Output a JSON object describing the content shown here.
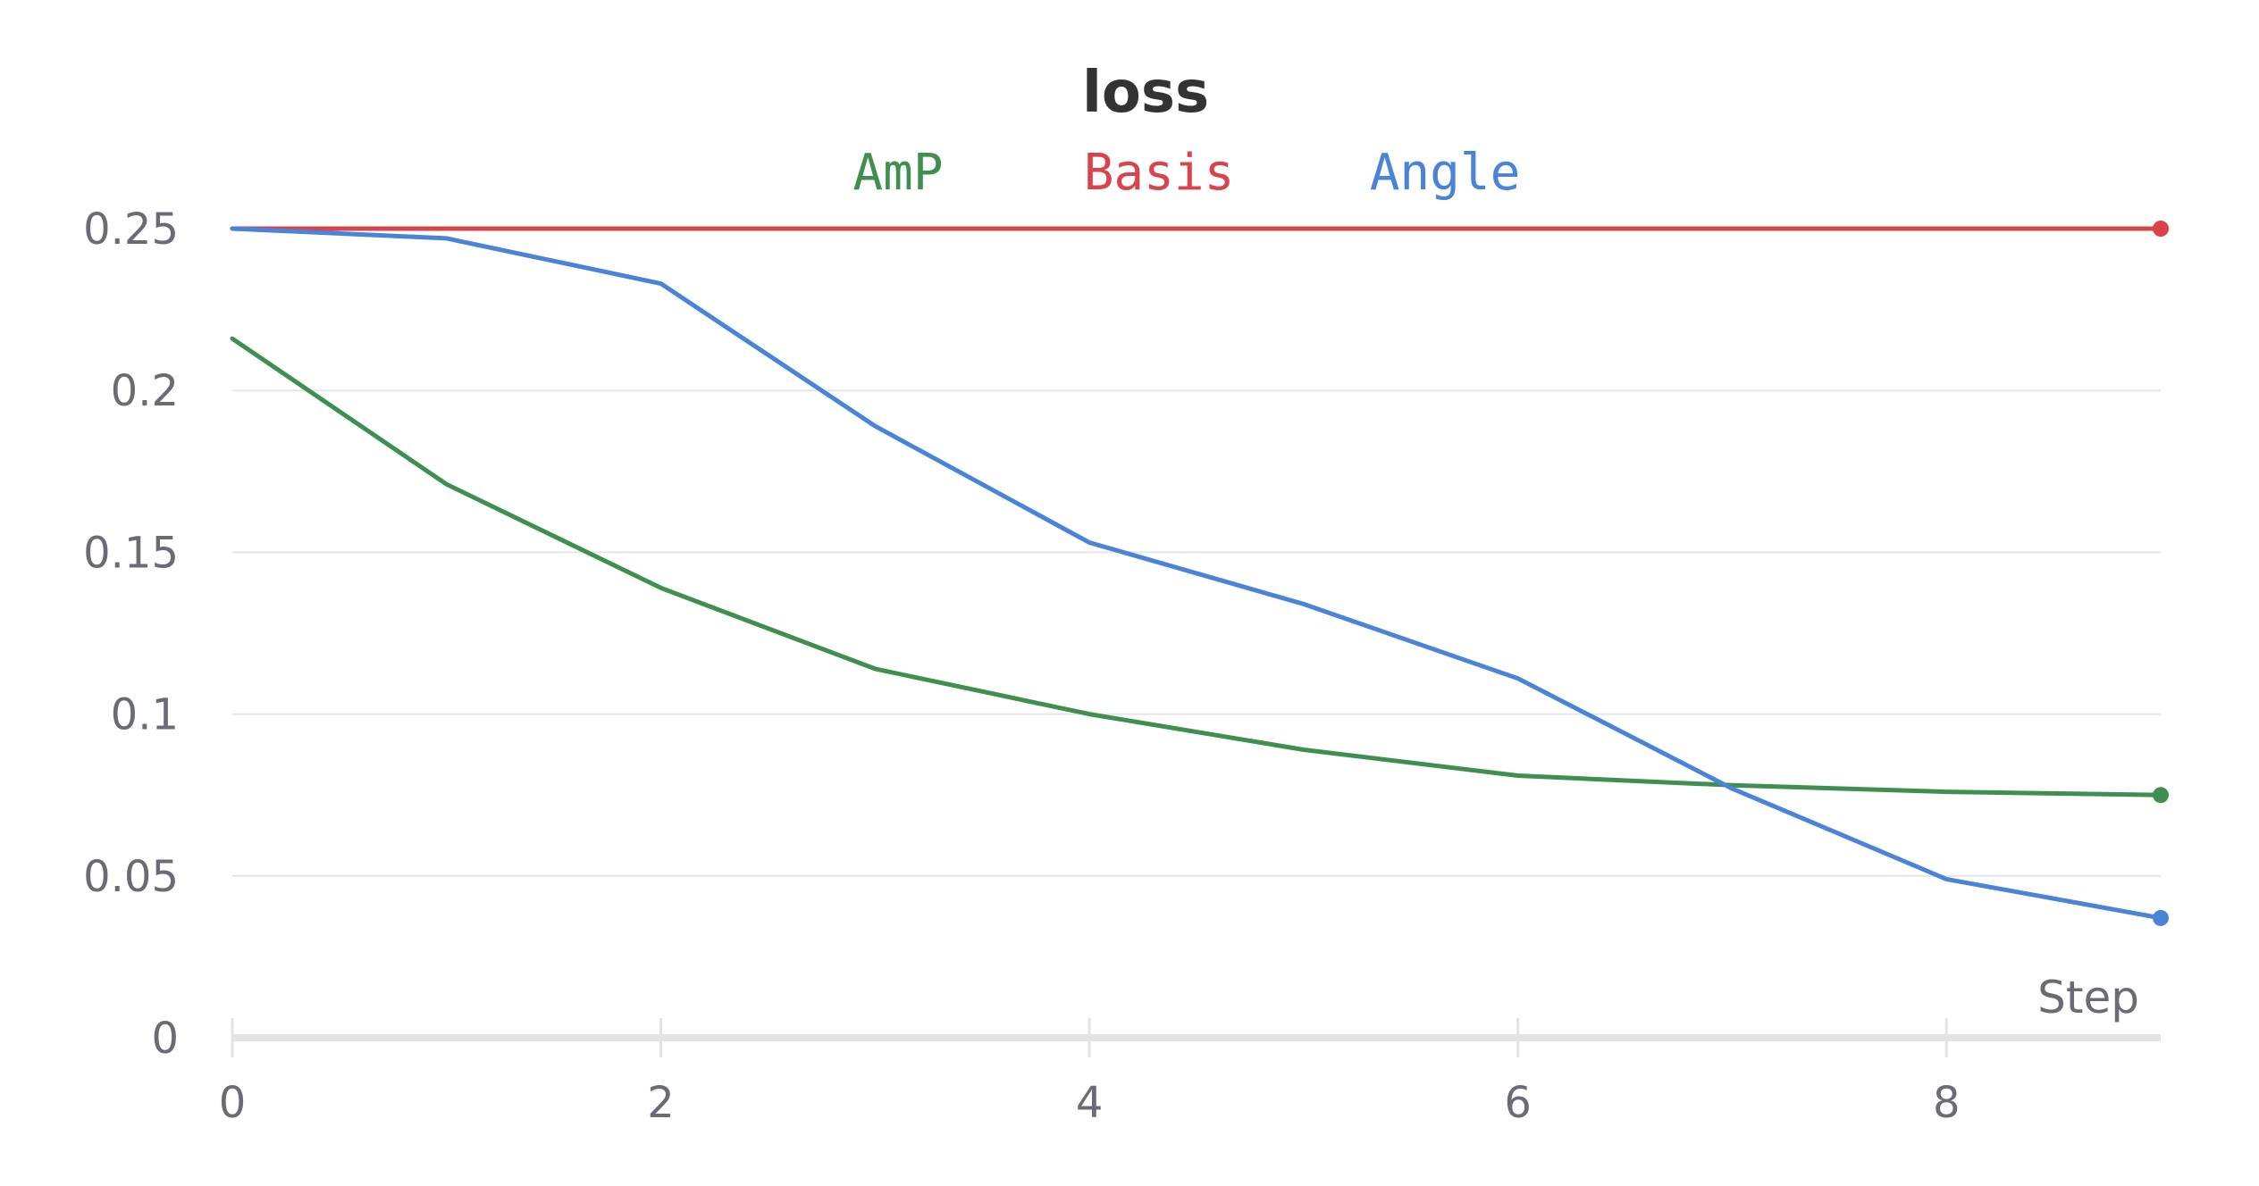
{
  "chart_data": {
    "type": "line",
    "title": "loss",
    "xlabel": "Step",
    "ylabel": "",
    "xlim": [
      0,
      9
    ],
    "ylim": [
      0,
      0.25
    ],
    "x_ticks": [
      "0",
      "2",
      "4",
      "6",
      "8"
    ],
    "x_tick_values": [
      0,
      2,
      4,
      6,
      8
    ],
    "y_ticks": [
      "0",
      "0.05",
      "0.1",
      "0.15",
      "0.2",
      "0.25"
    ],
    "y_tick_values": [
      0,
      0.05,
      0.1,
      0.15,
      0.2,
      0.25
    ],
    "grid": true,
    "legend_position": "top-center",
    "x": [
      0,
      1,
      2,
      3,
      4,
      5,
      6,
      7,
      8,
      9
    ],
    "series": [
      {
        "name": "AmP",
        "color": "#3f8f50",
        "values": [
          0.216,
          0.171,
          0.139,
          0.114,
          0.1,
          0.089,
          0.081,
          0.078,
          0.076,
          0.075
        ]
      },
      {
        "name": "Basis",
        "color": "#d9434b",
        "values": [
          0.25,
          0.25,
          0.25,
          0.25,
          0.25,
          0.25,
          0.25,
          0.25,
          0.25,
          0.25
        ]
      },
      {
        "name": "Angle",
        "color": "#4a84d9",
        "values": [
          0.25,
          0.247,
          0.233,
          0.189,
          0.153,
          0.134,
          0.111,
          0.077,
          0.049,
          0.037
        ]
      }
    ]
  }
}
